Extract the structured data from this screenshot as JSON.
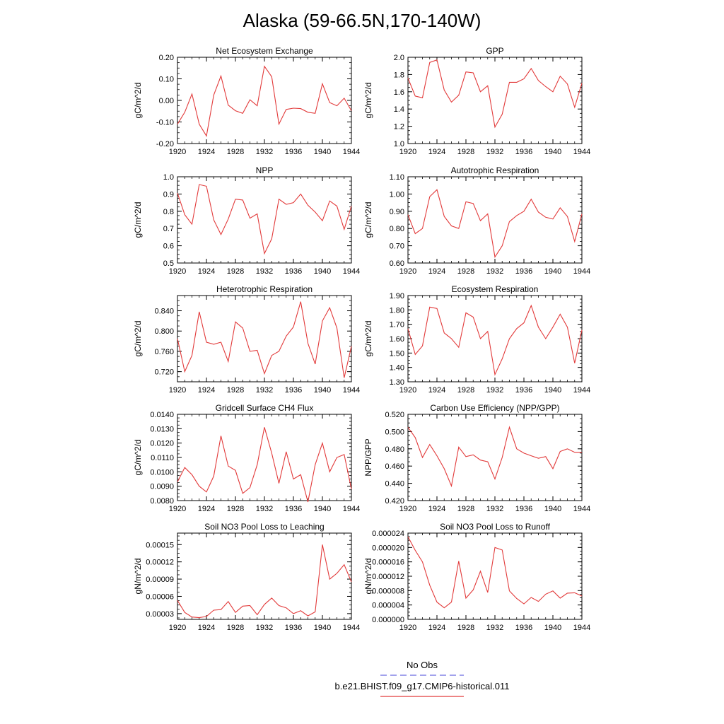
{
  "figure": {
    "title": "Alaska (59-66.5N,170-140W)",
    "legend": [
      {
        "label": "No Obs",
        "color": "#6a6ae0",
        "dash": true
      },
      {
        "label": "b.e21.BHIST.f09_g17.CMIP6-historical.011",
        "color": "#e23a3a",
        "dash": false
      }
    ]
  },
  "chart_data": [
    {
      "type": "line",
      "title": "Net Ecosystem Exchange",
      "ylabel": "gC/m^2/d",
      "ylim": [
        -0.2,
        0.2
      ],
      "yticks": [
        -0.2,
        -0.1,
        0.0,
        0.1,
        0.2
      ],
      "yticklabels": [
        "-0.20",
        "-0.10",
        "0.00",
        "0.10",
        "0.20"
      ],
      "xlim": [
        1920,
        1944
      ],
      "xticks": [
        1920,
        1924,
        1928,
        1932,
        1936,
        1940,
        1944
      ],
      "xticklabels": [
        "1920",
        "1924",
        "1928",
        "1932",
        "1936",
        "1940",
        "1944"
      ],
      "series": [
        {
          "color": "#e23a3a",
          "x": [
            1920,
            1921,
            1922,
            1923,
            1924,
            1925,
            1926,
            1927,
            1928,
            1929,
            1930,
            1931,
            1932,
            1933,
            1934,
            1935,
            1936,
            1937,
            1938,
            1939,
            1940,
            1941,
            1942,
            1943,
            1944
          ],
          "y": [
            -0.11,
            -0.055,
            0.03,
            -0.11,
            -0.165,
            0.025,
            0.113,
            -0.022,
            -0.048,
            -0.06,
            0.003,
            -0.025,
            0.158,
            0.11,
            -0.11,
            -0.042,
            -0.036,
            -0.038,
            -0.055,
            -0.06,
            0.077,
            -0.01,
            -0.025,
            0.01,
            -0.048
          ]
        }
      ]
    },
    {
      "type": "line",
      "title": "GPP",
      "ylabel": "gC/m^2/d",
      "ylim": [
        1.0,
        2.0
      ],
      "yticks": [
        1.0,
        1.2,
        1.4,
        1.6,
        1.8,
        2.0
      ],
      "yticklabels": [
        "1.0",
        "1.2",
        "1.4",
        "1.6",
        "1.8",
        "2.0"
      ],
      "xlim": [
        1920,
        1944
      ],
      "xticks": [
        1920,
        1924,
        1928,
        1932,
        1936,
        1940,
        1944
      ],
      "xticklabels": [
        "1920",
        "1924",
        "1928",
        "1932",
        "1936",
        "1940",
        "1944"
      ],
      "series": [
        {
          "color": "#e23a3a",
          "x": [
            1920,
            1921,
            1922,
            1923,
            1924,
            1925,
            1926,
            1927,
            1928,
            1929,
            1930,
            1931,
            1932,
            1933,
            1934,
            1935,
            1936,
            1937,
            1938,
            1939,
            1940,
            1941,
            1942,
            1943,
            1944
          ],
          "y": [
            1.76,
            1.55,
            1.53,
            1.94,
            1.97,
            1.62,
            1.48,
            1.56,
            1.83,
            1.82,
            1.6,
            1.67,
            1.19,
            1.34,
            1.71,
            1.71,
            1.75,
            1.87,
            1.73,
            1.66,
            1.6,
            1.78,
            1.69,
            1.42,
            1.7
          ]
        }
      ]
    },
    {
      "type": "line",
      "title": "NPP",
      "ylabel": "gC/m^2/d",
      "ylim": [
        0.5,
        1.0
      ],
      "yticks": [
        0.5,
        0.6,
        0.7,
        0.8,
        0.9,
        1.0
      ],
      "yticklabels": [
        "0.5",
        "0.6",
        "0.7",
        "0.8",
        "0.9",
        "1.0"
      ],
      "xlim": [
        1920,
        1944
      ],
      "xticks": [
        1920,
        1924,
        1928,
        1932,
        1936,
        1940,
        1944
      ],
      "xticklabels": [
        "1920",
        "1924",
        "1928",
        "1932",
        "1936",
        "1940",
        "1944"
      ],
      "series": [
        {
          "color": "#e23a3a",
          "x": [
            1920,
            1921,
            1922,
            1923,
            1924,
            1925,
            1926,
            1927,
            1928,
            1929,
            1930,
            1931,
            1932,
            1933,
            1934,
            1935,
            1936,
            1937,
            1938,
            1939,
            1940,
            1941,
            1942,
            1943,
            1944
          ],
          "y": [
            0.905,
            0.78,
            0.725,
            0.955,
            0.945,
            0.75,
            0.665,
            0.755,
            0.87,
            0.865,
            0.76,
            0.785,
            0.555,
            0.64,
            0.87,
            0.84,
            0.85,
            0.9,
            0.835,
            0.795,
            0.745,
            0.86,
            0.83,
            0.695,
            0.83
          ]
        }
      ]
    },
    {
      "type": "line",
      "title": "Autotrophic Respiration",
      "ylabel": "gC/m^2/d",
      "ylim": [
        0.6,
        1.1
      ],
      "yticks": [
        0.6,
        0.7,
        0.8,
        0.9,
        1.0,
        1.1
      ],
      "yticklabels": [
        "0.60",
        "0.70",
        "0.80",
        "0.90",
        "1.00",
        "1.10"
      ],
      "xlim": [
        1920,
        1944
      ],
      "xticks": [
        1920,
        1924,
        1928,
        1932,
        1936,
        1940,
        1944
      ],
      "xticklabels": [
        "1920",
        "1924",
        "1928",
        "1932",
        "1936",
        "1940",
        "1944"
      ],
      "series": [
        {
          "color": "#e23a3a",
          "x": [
            1920,
            1921,
            1922,
            1923,
            1924,
            1925,
            1926,
            1927,
            1928,
            1929,
            1930,
            1931,
            1932,
            1933,
            1934,
            1935,
            1936,
            1937,
            1938,
            1939,
            1940,
            1941,
            1942,
            1943,
            1944
          ],
          "y": [
            0.88,
            0.77,
            0.8,
            0.985,
            1.025,
            0.87,
            0.815,
            0.8,
            0.955,
            0.945,
            0.845,
            0.885,
            0.635,
            0.7,
            0.84,
            0.875,
            0.9,
            0.97,
            0.895,
            0.865,
            0.855,
            0.92,
            0.87,
            0.725,
            0.885
          ]
        }
      ]
    },
    {
      "type": "line",
      "title": "Heterotrophic Respiration",
      "ylabel": "gC/m^2/d",
      "ylim": [
        0.7,
        0.87
      ],
      "yticks": [
        0.72,
        0.76,
        0.8,
        0.84
      ],
      "yticklabels": [
        "0.720",
        "0.760",
        "0.800",
        "0.840"
      ],
      "xlim": [
        1920,
        1944
      ],
      "xticks": [
        1920,
        1924,
        1928,
        1932,
        1936,
        1940,
        1944
      ],
      "xticklabels": [
        "1920",
        "1924",
        "1928",
        "1932",
        "1936",
        "1940",
        "1944"
      ],
      "series": [
        {
          "color": "#e23a3a",
          "x": [
            1920,
            1921,
            1922,
            1923,
            1924,
            1925,
            1926,
            1927,
            1928,
            1929,
            1930,
            1931,
            1932,
            1933,
            1934,
            1935,
            1936,
            1937,
            1938,
            1939,
            1940,
            1941,
            1942,
            1943,
            1944
          ],
          "y": [
            0.785,
            0.72,
            0.752,
            0.838,
            0.778,
            0.774,
            0.778,
            0.74,
            0.818,
            0.806,
            0.76,
            0.762,
            0.716,
            0.752,
            0.76,
            0.79,
            0.808,
            0.858,
            0.776,
            0.735,
            0.82,
            0.846,
            0.806,
            0.708,
            0.77
          ]
        }
      ]
    },
    {
      "type": "line",
      "title": "Ecosystem Respiration",
      "ylabel": "gC/m^2/d",
      "ylim": [
        1.3,
        1.9
      ],
      "yticks": [
        1.3,
        1.4,
        1.5,
        1.6,
        1.7,
        1.8,
        1.9
      ],
      "yticklabels": [
        "1.30",
        "1.40",
        "1.50",
        "1.60",
        "1.70",
        "1.80",
        "1.90"
      ],
      "xlim": [
        1920,
        1944
      ],
      "xticks": [
        1920,
        1924,
        1928,
        1932,
        1936,
        1940,
        1944
      ],
      "xticklabels": [
        "1920",
        "1924",
        "1928",
        "1932",
        "1936",
        "1940",
        "1944"
      ],
      "series": [
        {
          "color": "#e23a3a",
          "x": [
            1920,
            1921,
            1922,
            1923,
            1924,
            1925,
            1926,
            1927,
            1928,
            1929,
            1930,
            1931,
            1932,
            1933,
            1934,
            1935,
            1936,
            1937,
            1938,
            1939,
            1940,
            1941,
            1942,
            1943,
            1944
          ],
          "y": [
            1.67,
            1.49,
            1.55,
            1.82,
            1.81,
            1.64,
            1.6,
            1.54,
            1.78,
            1.75,
            1.6,
            1.65,
            1.35,
            1.46,
            1.6,
            1.67,
            1.71,
            1.83,
            1.68,
            1.6,
            1.68,
            1.77,
            1.68,
            1.43,
            1.66
          ]
        }
      ]
    },
    {
      "type": "line",
      "title": "Gridcell Surface CH4 Flux",
      "ylabel": "gC/m^2/d",
      "ylim": [
        0.008,
        0.014
      ],
      "yticks": [
        0.008,
        0.009,
        0.01,
        0.011,
        0.012,
        0.013,
        0.014
      ],
      "yticklabels": [
        "0.0080",
        "0.0090",
        "0.0100",
        "0.0110",
        "0.0120",
        "0.0130",
        "0.0140"
      ],
      "xlim": [
        1920,
        1944
      ],
      "xticks": [
        1920,
        1924,
        1928,
        1932,
        1936,
        1940,
        1944
      ],
      "xticklabels": [
        "1920",
        "1924",
        "1928",
        "1932",
        "1936",
        "1940",
        "1944"
      ],
      "series": [
        {
          "color": "#e23a3a",
          "x": [
            1920,
            1921,
            1922,
            1923,
            1924,
            1925,
            1926,
            1927,
            1928,
            1929,
            1930,
            1931,
            1932,
            1933,
            1934,
            1935,
            1936,
            1937,
            1938,
            1939,
            1940,
            1941,
            1942,
            1943,
            1944
          ],
          "y": [
            0.0093,
            0.0103,
            0.0098,
            0.009,
            0.0086,
            0.0097,
            0.0125,
            0.0104,
            0.0101,
            0.0085,
            0.0089,
            0.0105,
            0.0131,
            0.0113,
            0.0092,
            0.0114,
            0.0095,
            0.0098,
            0.0079,
            0.0105,
            0.012,
            0.01,
            0.011,
            0.0112,
            0.0088
          ]
        }
      ]
    },
    {
      "type": "line",
      "title": "Carbon Use Efficiency (NPP/GPP)",
      "ylabel": "NPP/GPP",
      "ylim": [
        0.42,
        0.52
      ],
      "yticks": [
        0.42,
        0.44,
        0.46,
        0.48,
        0.5,
        0.52
      ],
      "yticklabels": [
        "0.420",
        "0.440",
        "0.460",
        "0.480",
        "0.500",
        "0.520"
      ],
      "xlim": [
        1920,
        1944
      ],
      "xticks": [
        1920,
        1924,
        1928,
        1932,
        1936,
        1940,
        1944
      ],
      "xticklabels": [
        "1920",
        "1924",
        "1928",
        "1932",
        "1936",
        "1940",
        "1944"
      ],
      "series": [
        {
          "color": "#e23a3a",
          "x": [
            1920,
            1921,
            1922,
            1923,
            1924,
            1925,
            1926,
            1927,
            1928,
            1929,
            1930,
            1931,
            1932,
            1933,
            1934,
            1935,
            1936,
            1937,
            1938,
            1939,
            1940,
            1941,
            1942,
            1943,
            1944
          ],
          "y": [
            0.505,
            0.493,
            0.47,
            0.485,
            0.472,
            0.457,
            0.437,
            0.482,
            0.471,
            0.473,
            0.467,
            0.465,
            0.445,
            0.47,
            0.505,
            0.48,
            0.475,
            0.472,
            0.469,
            0.471,
            0.457,
            0.477,
            0.48,
            0.476,
            0.476
          ]
        }
      ]
    },
    {
      "type": "line",
      "title": "Soil NO3 Pool Loss to Leaching",
      "ylabel": "gN/m^2/d",
      "ylim": [
        2e-05,
        0.00017
      ],
      "yticks": [
        3e-05,
        6e-05,
        9e-05,
        0.00012,
        0.00015
      ],
      "yticklabels": [
        "0.00003",
        "0.00006",
        "0.00009",
        "0.00012",
        "0.00015"
      ],
      "xlim": [
        1920,
        1944
      ],
      "xticks": [
        1920,
        1924,
        1928,
        1932,
        1936,
        1940,
        1944
      ],
      "xticklabels": [
        "1920",
        "1924",
        "1928",
        "1932",
        "1936",
        "1940",
        "1944"
      ],
      "series": [
        {
          "color": "#e23a3a",
          "x": [
            1920,
            1921,
            1922,
            1923,
            1924,
            1925,
            1926,
            1927,
            1928,
            1929,
            1930,
            1931,
            1932,
            1933,
            1934,
            1935,
            1936,
            1937,
            1938,
            1939,
            1940,
            1941,
            1942,
            1943,
            1944
          ],
          "y": [
            5.3e-05,
            3.2e-05,
            2.4e-05,
            2.3e-05,
            2.5e-05,
            3.6e-05,
            3.7e-05,
            5.1e-05,
            3.2e-05,
            4.3e-05,
            4.4e-05,
            2.8e-05,
            4.6e-05,
            5.7e-05,
            4.4e-05,
            4e-05,
            3e-05,
            3.5e-05,
            2.6e-05,
            3.3e-05,
            0.00015,
            9e-05,
            0.0001,
            0.000115,
            8.5e-05
          ]
        }
      ]
    },
    {
      "type": "line",
      "title": "Soil NO3 Pool Loss to Runoff",
      "ylabel": "gN/m^2/d",
      "ylim": [
        0.0,
        2.4e-05
      ],
      "yticks": [
        0.0,
        4e-06,
        8e-06,
        1.2e-05,
        1.6e-05,
        2e-05,
        2.4e-05
      ],
      "yticklabels": [
        "0.000000",
        "0.000004",
        "0.000008",
        "0.000012",
        "0.000016",
        "0.000020",
        "0.000024"
      ],
      "xlim": [
        1920,
        1944
      ],
      "xticks": [
        1920,
        1924,
        1928,
        1932,
        1936,
        1940,
        1944
      ],
      "xticklabels": [
        "1920",
        "1924",
        "1928",
        "1932",
        "1936",
        "1940",
        "1944"
      ],
      "series": [
        {
          "color": "#e23a3a",
          "x": [
            1920,
            1921,
            1922,
            1923,
            1924,
            1925,
            1926,
            1927,
            1928,
            1929,
            1930,
            1931,
            1932,
            1933,
            1934,
            1935,
            1936,
            1937,
            1938,
            1939,
            1940,
            1941,
            1942,
            1943,
            1944
          ],
          "y": [
            2.3e-05,
            1.92e-05,
            1.6e-05,
            9.5e-06,
            4.8e-06,
            3.2e-06,
            4.8e-06,
            1.62e-05,
            5.9e-06,
            8.2e-06,
            1.34e-05,
            7.5e-06,
            2e-05,
            1.93e-05,
            7.9e-06,
            5.8e-06,
            4.3e-06,
            6.1e-06,
            5e-06,
            7e-06,
            7.9e-06,
            5.9e-06,
            7.3e-06,
            7.4e-06,
            6.5e-06
          ]
        }
      ]
    }
  ]
}
